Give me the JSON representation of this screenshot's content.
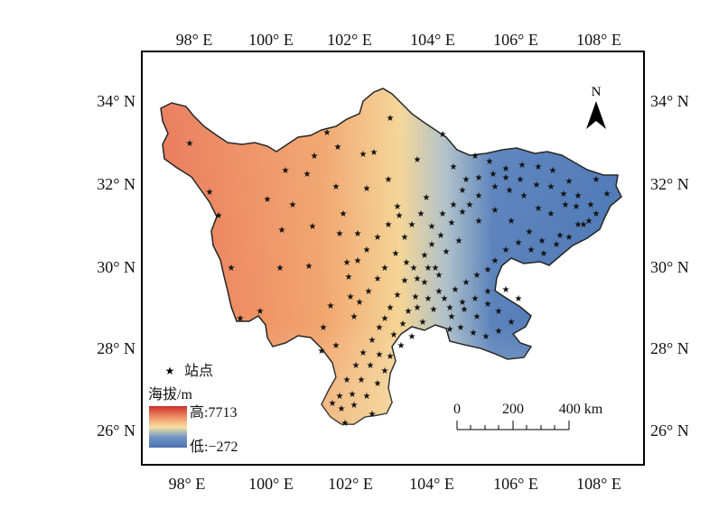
{
  "map": {
    "lon_ticks": [
      "98° E",
      "100° E",
      "102° E",
      "104° E",
      "106° E",
      "108° E"
    ],
    "lat_ticks": [
      "34° N",
      "32° N",
      "30° N",
      "28° N",
      "26° N"
    ],
    "north_label": "N"
  },
  "legend": {
    "station_label": "站点",
    "elevation_title": "海拔/m",
    "high_label": "高:7713",
    "low_label": "低:−272",
    "gradient_colors": [
      "#c9302c",
      "#ef8a62",
      "#f7e1a0",
      "#6f96c9",
      "#4a70b0"
    ],
    "station_color": "#111111"
  },
  "scale_bar": {
    "labels": [
      "0",
      "200",
      "400 km"
    ]
  }
}
